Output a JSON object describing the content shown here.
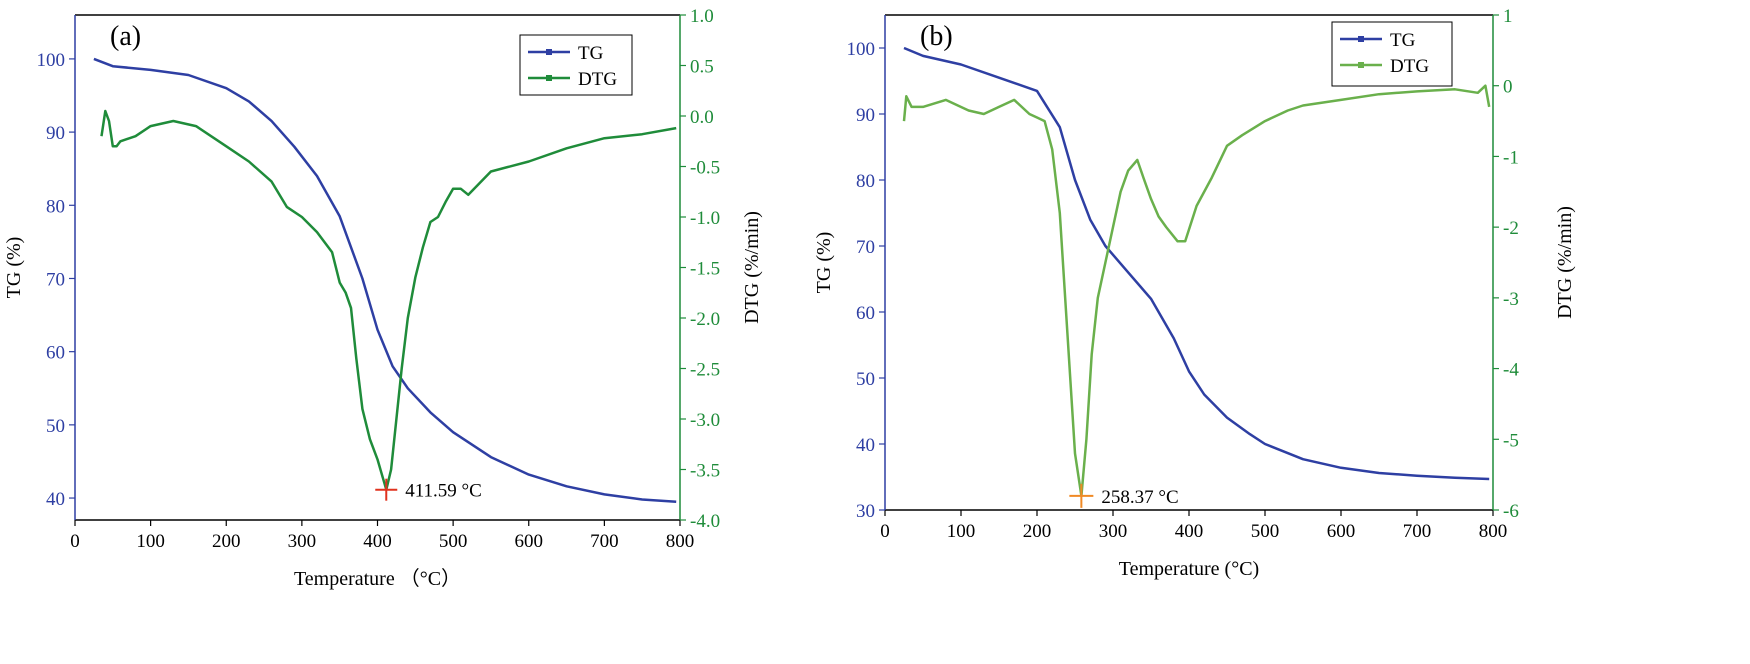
{
  "chart_data": [
    {
      "panel_label": "(a)",
      "type": "line",
      "xlabel": "Temperature （°C）",
      "ylabel_left": "TG (%)",
      "ylabel_right": "DTG (%/min)",
      "xlim": [
        0,
        800
      ],
      "ylim_left": [
        37,
        106
      ],
      "ylim_right": [
        -4.0,
        1.0
      ],
      "x_ticks": [
        0,
        100,
        200,
        300,
        400,
        500,
        600,
        700,
        800
      ],
      "y_left_ticks": [
        40,
        50,
        60,
        70,
        80,
        90,
        100
      ],
      "y_right_ticks": [
        1.0,
        0.5,
        0.0,
        -0.5,
        -1.0,
        -1.5,
        -2.0,
        -2.5,
        -3.0,
        -3.5,
        -4.0
      ],
      "y_right_tick_labels": [
        "1.0",
        "0.5",
        "0.0",
        "-0.5",
        "-1.0",
        "-1.5",
        "-2.0",
        "-2.5",
        "-3.0",
        "-3.5",
        "-4.0"
      ],
      "legend": [
        "TG",
        "DTG"
      ],
      "legend_position": "top-right",
      "colors": {
        "tg": "#2e3fa3",
        "dtg": "#1f8c3a",
        "marker": "#e0321e",
        "axis_left": "#2e3fa3",
        "axis_right": "#1f8c3a"
      },
      "annotation": {
        "text": "411.59 °C",
        "x": 411.59,
        "y_right": -3.7
      },
      "series": [
        {
          "name": "TG",
          "axis": "left",
          "x": [
            25,
            50,
            100,
            150,
            200,
            230,
            260,
            290,
            320,
            350,
            380,
            400,
            420,
            440,
            470,
            500,
            550,
            600,
            650,
            700,
            750,
            795
          ],
          "y": [
            100.0,
            99.0,
            98.5,
            97.8,
            96.0,
            94.2,
            91.5,
            88.0,
            84.0,
            78.5,
            70.0,
            63.0,
            58.0,
            55.0,
            51.7,
            49.0,
            45.6,
            43.2,
            41.6,
            40.5,
            39.8,
            39.5
          ]
        },
        {
          "name": "DTG",
          "axis": "right",
          "x": [
            35,
            40,
            45,
            50,
            55,
            60,
            80,
            100,
            130,
            160,
            200,
            230,
            260,
            280,
            300,
            320,
            340,
            350,
            358,
            365,
            372,
            380,
            390,
            400,
            411.59,
            418,
            425,
            432,
            440,
            450,
            460,
            470,
            480,
            490,
            500,
            510,
            520,
            550,
            600,
            650,
            700,
            750,
            795
          ],
          "y": [
            -0.2,
            0.05,
            -0.05,
            -0.3,
            -0.3,
            -0.25,
            -0.2,
            -0.1,
            -0.05,
            -0.1,
            -0.3,
            -0.45,
            -0.65,
            -0.9,
            -1.0,
            -1.15,
            -1.35,
            -1.65,
            -1.75,
            -1.9,
            -2.4,
            -2.9,
            -3.2,
            -3.4,
            -3.7,
            -3.5,
            -3.0,
            -2.5,
            -2.0,
            -1.6,
            -1.3,
            -1.05,
            -1.0,
            -0.85,
            -0.72,
            -0.72,
            -0.78,
            -0.55,
            -0.45,
            -0.32,
            -0.22,
            -0.18,
            -0.12
          ]
        }
      ]
    },
    {
      "panel_label": "(b)",
      "type": "line",
      "xlabel": "Temperature (°C)",
      "ylabel_left": "TG (%)",
      "ylabel_right": "DTG (%/min)",
      "xlim": [
        0,
        800
      ],
      "ylim_left": [
        30,
        105
      ],
      "ylim_right": [
        -6,
        1
      ],
      "x_ticks": [
        0,
        100,
        200,
        300,
        400,
        500,
        600,
        700,
        800
      ],
      "y_left_ticks": [
        30,
        40,
        50,
        60,
        70,
        80,
        90,
        100
      ],
      "y_right_ticks": [
        1,
        0,
        -1,
        -2,
        -3,
        -4,
        -5,
        -6
      ],
      "y_right_tick_labels": [
        "1",
        "0",
        "-1",
        "-2",
        "-3",
        "-4",
        "-5",
        "-6"
      ],
      "legend": [
        "TG",
        "DTG"
      ],
      "legend_position": "top-right",
      "colors": {
        "tg": "#2e3fa3",
        "dtg": "#6ab04c",
        "marker": "#f08a24",
        "axis_left": "#2e3fa3",
        "axis_right": "#1f8c3a"
      },
      "annotation": {
        "text": "258.37 °C",
        "x": 258.37,
        "y_right": -5.8
      },
      "series": [
        {
          "name": "TG",
          "axis": "left",
          "x": [
            25,
            50,
            100,
            150,
            200,
            230,
            250,
            270,
            290,
            320,
            350,
            380,
            400,
            420,
            450,
            480,
            500,
            550,
            600,
            650,
            700,
            750,
            795
          ],
          "y": [
            100.0,
            98.8,
            97.5,
            95.5,
            93.5,
            88.0,
            80.0,
            74.0,
            70.0,
            66.0,
            62.0,
            56.0,
            51.0,
            47.5,
            44.0,
            41.5,
            40.0,
            37.7,
            36.4,
            35.6,
            35.2,
            34.9,
            34.7
          ]
        },
        {
          "name": "DTG",
          "axis": "right",
          "x": [
            25,
            28,
            35,
            50,
            80,
            110,
            130,
            150,
            170,
            190,
            200,
            210,
            220,
            230,
            240,
            250,
            258.37,
            265,
            272,
            280,
            290,
            300,
            310,
            320,
            332,
            340,
            350,
            360,
            370,
            385,
            395,
            410,
            430,
            450,
            470,
            500,
            530,
            550,
            600,
            650,
            700,
            750,
            780,
            790,
            795
          ],
          "y": [
            -0.5,
            -0.15,
            -0.3,
            -0.3,
            -0.2,
            -0.35,
            -0.4,
            -0.3,
            -0.2,
            -0.4,
            -0.45,
            -0.5,
            -0.9,
            -1.8,
            -3.5,
            -5.2,
            -5.8,
            -5.0,
            -3.8,
            -3.0,
            -2.5,
            -2.0,
            -1.5,
            -1.2,
            -1.05,
            -1.3,
            -1.6,
            -1.85,
            -2.0,
            -2.2,
            -2.2,
            -1.7,
            -1.3,
            -0.85,
            -0.7,
            -0.5,
            -0.35,
            -0.28,
            -0.2,
            -0.12,
            -0.08,
            -0.05,
            -0.1,
            0.0,
            -0.3
          ]
        }
      ]
    }
  ]
}
